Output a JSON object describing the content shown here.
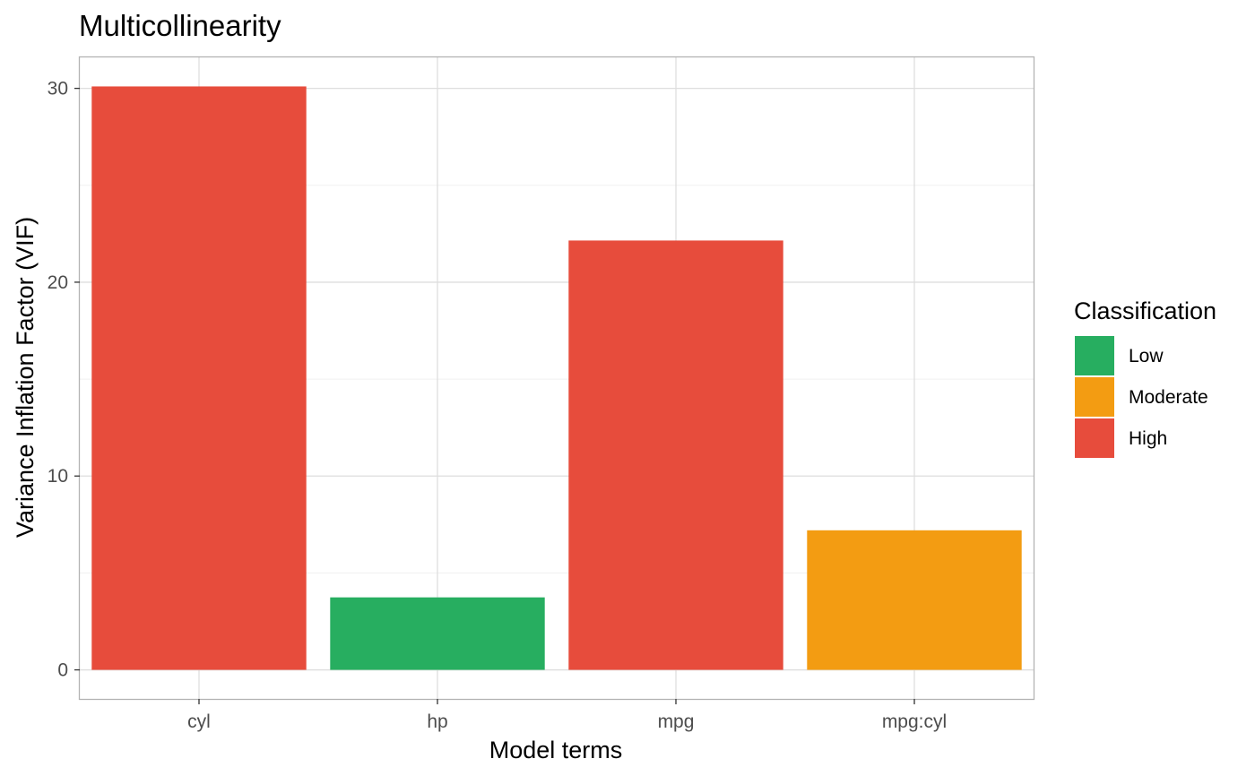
{
  "chart_data": {
    "type": "bar",
    "title": "Multicollinearity",
    "xlabel": "Model terms",
    "ylabel": "Variance Inflation Factor (VIF)",
    "categories": [
      "cyl",
      "hp",
      "mpg",
      "mpg:cyl"
    ],
    "values": [
      30.1,
      3.74,
      22.15,
      7.2
    ],
    "classification": [
      "High",
      "Low",
      "High",
      "Moderate"
    ],
    "ylim": [
      -1.5,
      31.6
    ],
    "yticks": [
      0,
      10,
      20,
      30
    ],
    "grid": true,
    "legend": {
      "title": "Classification",
      "position": "right",
      "entries": [
        {
          "label": "Low",
          "color": "#27ae60"
        },
        {
          "label": "Moderate",
          "color": "#f39c12"
        },
        {
          "label": "High",
          "color": "#e74c3c"
        }
      ]
    }
  }
}
